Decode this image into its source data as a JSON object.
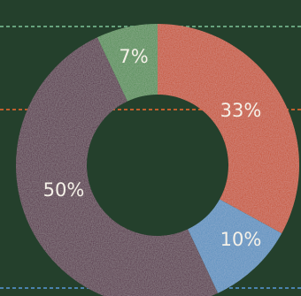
{
  "chart_data": {
    "type": "pie",
    "style": "donut",
    "slices": [
      {
        "label": "33%",
        "value": 33,
        "color": "#c4461b"
      },
      {
        "label": "10%",
        "value": 10,
        "color": "#4f8bbd"
      },
      {
        "label": "50%",
        "value": 50,
        "color": "#4c1d3b"
      },
      {
        "label": "7%",
        "value": 7,
        "color": "#4a8a4b"
      }
    ],
    "background_color": "#24402c",
    "guide_lines": [
      {
        "color": "#6fae86"
      },
      {
        "color": "#d0622e"
      },
      {
        "color": "#4f8bbd"
      }
    ]
  }
}
